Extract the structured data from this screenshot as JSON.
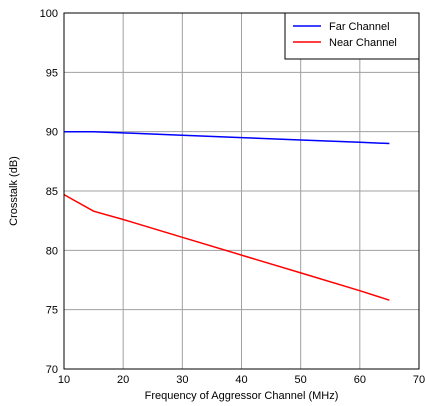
{
  "chart_data": {
    "type": "line",
    "title": "",
    "xlabel": "Frequency of Aggressor Channel (MHz)",
    "ylabel": "Crosstalk (dB)",
    "xlim": [
      10,
      70
    ],
    "ylim": [
      70,
      100
    ],
    "xticks": [
      10,
      20,
      30,
      40,
      50,
      60,
      70
    ],
    "yticks": [
      70,
      75,
      80,
      85,
      90,
      95,
      100
    ],
    "grid": true,
    "legend_position": "top-right",
    "series": [
      {
        "name": "Far Channel",
        "color": "#0000ff",
        "x": [
          10,
          15,
          20,
          30,
          40,
          50,
          60,
          65
        ],
        "y": [
          90.0,
          90.0,
          89.9,
          89.7,
          89.5,
          89.3,
          89.1,
          89.0
        ]
      },
      {
        "name": "Near Channel",
        "color": "#ff0000",
        "x": [
          10,
          15,
          20,
          30,
          40,
          50,
          60,
          65
        ],
        "y": [
          84.7,
          83.3,
          82.6,
          81.1,
          79.6,
          78.1,
          76.6,
          75.8
        ]
      }
    ]
  }
}
